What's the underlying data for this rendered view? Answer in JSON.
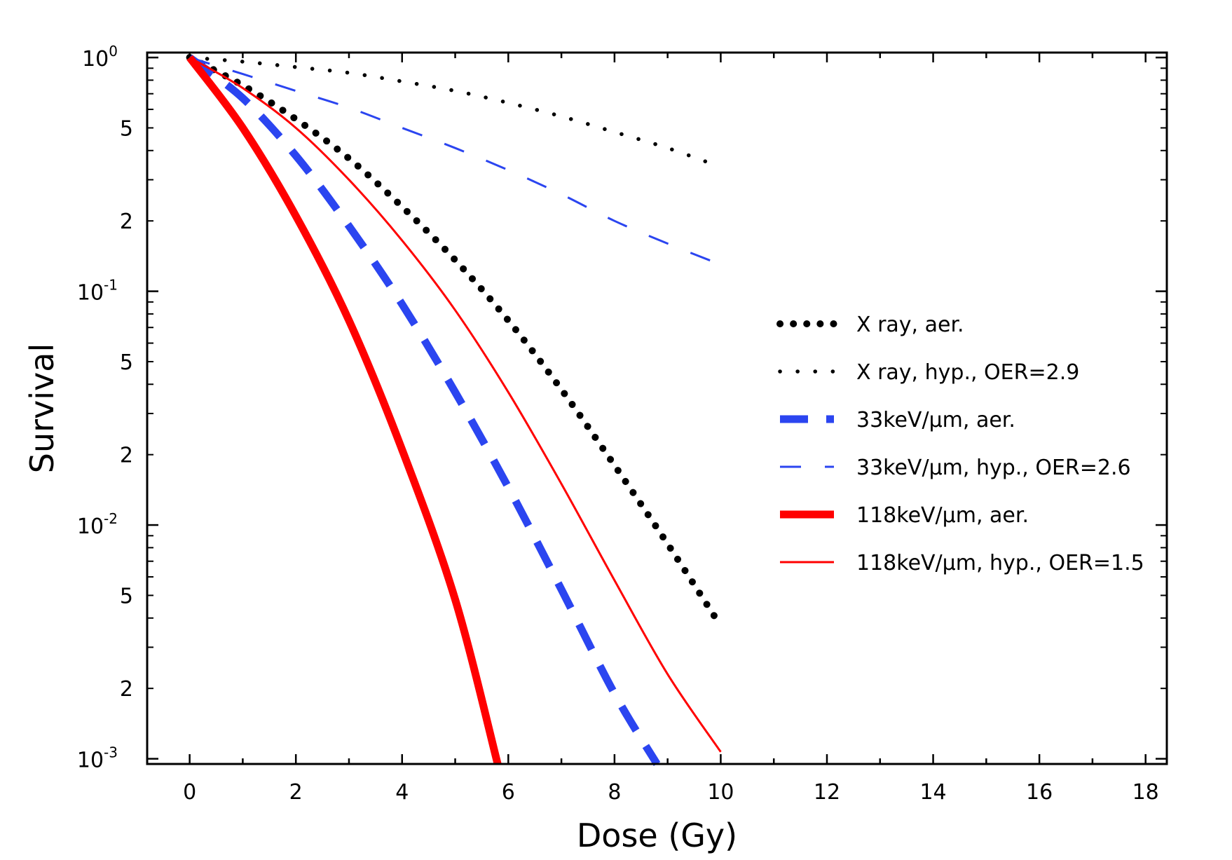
{
  "chart_data": {
    "type": "line",
    "xlabel": "Dose (Gy)",
    "ylabel": "Survival",
    "xlim": [
      -0.8,
      18.4
    ],
    "ylim": [
      0.00095,
      1.05
    ],
    "yscale": "log",
    "x_ticks": [
      0,
      2,
      4,
      6,
      8,
      10,
      12,
      14,
      16,
      18
    ],
    "x_tick_labels": [
      "0",
      "2",
      "4",
      "6",
      "8",
      "10",
      "12",
      "14",
      "16",
      "18"
    ],
    "y_major_ticks": [
      {
        "value": 1,
        "base": "10",
        "exp": "0"
      },
      {
        "value": 0.1,
        "base": "10",
        "exp": "-1"
      },
      {
        "value": 0.01,
        "base": "10",
        "exp": "-2"
      },
      {
        "value": 0.001,
        "base": "10",
        "exp": "-3"
      }
    ],
    "y_minor_labels": [
      {
        "value": 0.5,
        "label": "5"
      },
      {
        "value": 0.2,
        "label": "2"
      },
      {
        "value": 0.05,
        "label": "5"
      },
      {
        "value": 0.02,
        "label": "2"
      },
      {
        "value": 0.005,
        "label": "5"
      },
      {
        "value": 0.002,
        "label": "2"
      }
    ],
    "series": [
      {
        "name": "X ray, aer.",
        "style": "dotted-thick",
        "color": "#000000",
        "x": [
          0,
          1,
          2,
          3,
          4,
          5,
          6,
          7,
          8,
          9,
          10
        ],
        "y": [
          1.0,
          0.76,
          0.545,
          0.37,
          0.23,
          0.136,
          0.075,
          0.038,
          0.018,
          0.0083,
          0.0037
        ]
      },
      {
        "name": "X ray, hyp., OER=2.9",
        "style": "dotted-thin",
        "color": "#000000",
        "x": [
          0,
          1,
          2,
          3,
          4,
          5,
          6,
          7,
          8,
          9,
          10
        ],
        "y": [
          1.0,
          0.96,
          0.91,
          0.86,
          0.79,
          0.72,
          0.64,
          0.56,
          0.48,
          0.41,
          0.34
        ]
      },
      {
        "name": "33keV/μm, aer.",
        "style": "dashed-thick",
        "color": "#2b45f0",
        "x": [
          0,
          1,
          2,
          3,
          4,
          5,
          6,
          7,
          8,
          8.8
        ],
        "y": [
          1.0,
          0.67,
          0.38,
          0.19,
          0.088,
          0.037,
          0.0145,
          0.0053,
          0.0019,
          0.00095
        ]
      },
      {
        "name": "33keV/μm, hyp., OER=2.6",
        "style": "dashed-thin",
        "color": "#2b45f0",
        "x": [
          0,
          1,
          2,
          3,
          4,
          5,
          6,
          7,
          8,
          9,
          10
        ],
        "y": [
          1.0,
          0.85,
          0.72,
          0.61,
          0.5,
          0.41,
          0.33,
          0.26,
          0.2,
          0.16,
          0.13
        ]
      },
      {
        "name": "118keV/μm, aer.",
        "style": "solid-thick",
        "color": "#ff0000",
        "x": [
          0,
          1,
          2,
          3,
          4,
          5,
          5.8
        ],
        "y": [
          1.0,
          0.5,
          0.21,
          0.075,
          0.021,
          0.0048,
          0.00095
        ]
      },
      {
        "name": "118keV/μm, hyp., OER=1.5",
        "style": "solid-thin",
        "color": "#ff0000",
        "x": [
          0,
          1,
          2,
          3,
          4,
          5,
          6,
          7,
          8,
          9,
          10
        ],
        "y": [
          1.0,
          0.74,
          0.5,
          0.3,
          0.165,
          0.083,
          0.037,
          0.015,
          0.0058,
          0.0023,
          0.00107
        ]
      }
    ],
    "legend": {
      "position": "right-middle",
      "entries": [
        "X ray, aer.",
        "X ray, hyp., OER=2.9",
        "33keV/μm, aer.",
        "33keV/μm, hyp., OER=2.6",
        "118keV/μm, aer.",
        "118keV/μm, hyp., OER=1.5"
      ]
    }
  }
}
